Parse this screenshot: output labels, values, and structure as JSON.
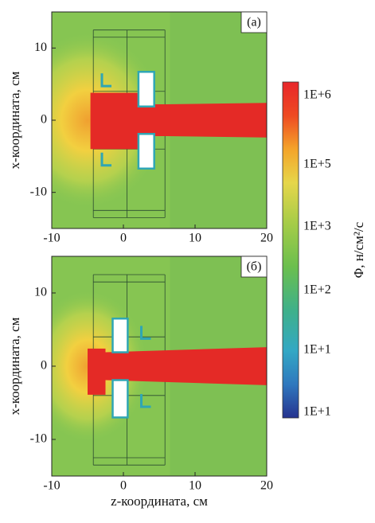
{
  "chart_data": [
    {
      "type": "heatmap",
      "panel_label": "(а)",
      "y_label": "x-координата, см",
      "xlim": [
        -10,
        20
      ],
      "ylim": [
        -15,
        15
      ],
      "xticks": [
        -10,
        0,
        10,
        20
      ],
      "yticks": [
        -10,
        0,
        10
      ]
    },
    {
      "type": "heatmap",
      "panel_label": "(б)",
      "y_label": "x-координата, см",
      "x_label": "z-координата, см",
      "xlim": [
        -10,
        20
      ],
      "ylim": [
        -15,
        15
      ],
      "xticks": [
        -10,
        0,
        10,
        20
      ],
      "yticks": [
        -10,
        0,
        10
      ]
    }
  ],
  "colorbar": {
    "label": "Φ, н/см²/с",
    "tick_labels": [
      "1E+6",
      "1E+5",
      "1E+3",
      "1E+2",
      "1E+1",
      "1E+1"
    ]
  }
}
